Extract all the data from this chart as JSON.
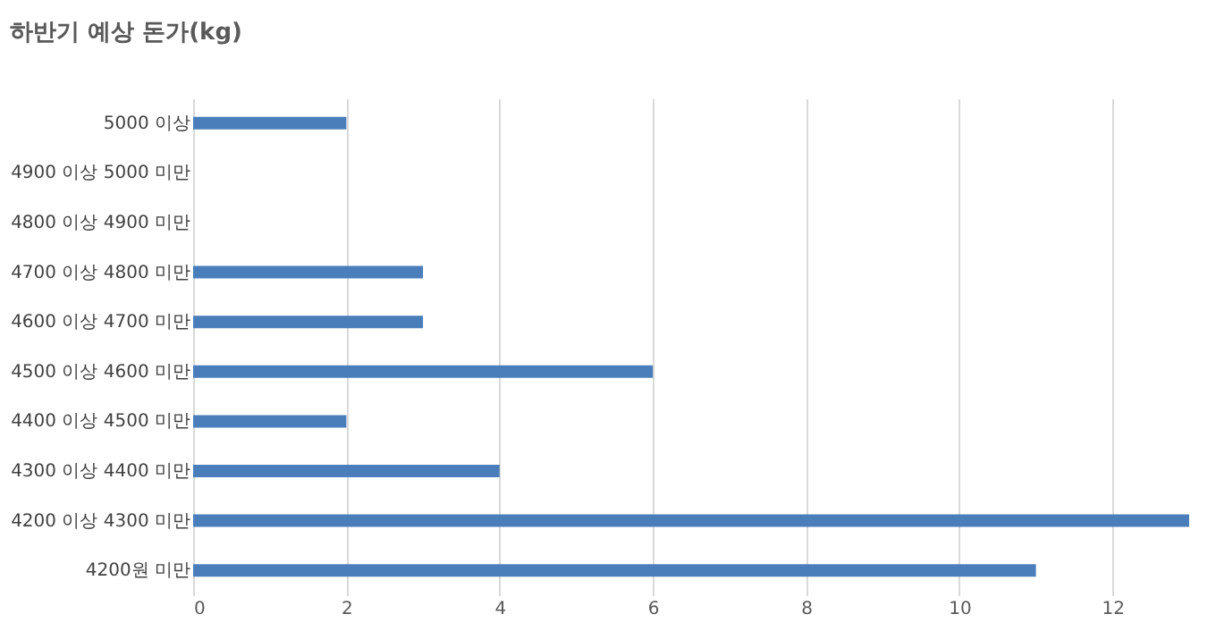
{
  "chart_data": {
    "type": "bar",
    "orientation": "horizontal",
    "title": "하반기 예상 돈가(kg)",
    "categories": [
      "5000 이상",
      "4900 이상 5000 미만",
      "4800 이상 4900 미만",
      "4700 이상 4800 미만",
      "4600 이상 4700 미만",
      "4500 이상 4600 미만",
      "4400 이상 4500 미만",
      "4300 이상 4400 미만",
      "4200 이상 4300 미만",
      "4200원 미만"
    ],
    "values": [
      2,
      0,
      0,
      3,
      3,
      6,
      2,
      4,
      13,
      11
    ],
    "color": "#4a7ebb",
    "xlim": [
      0,
      13
    ],
    "xticks": [
      0,
      2,
      4,
      6,
      8,
      10,
      12
    ],
    "grid": "x"
  }
}
